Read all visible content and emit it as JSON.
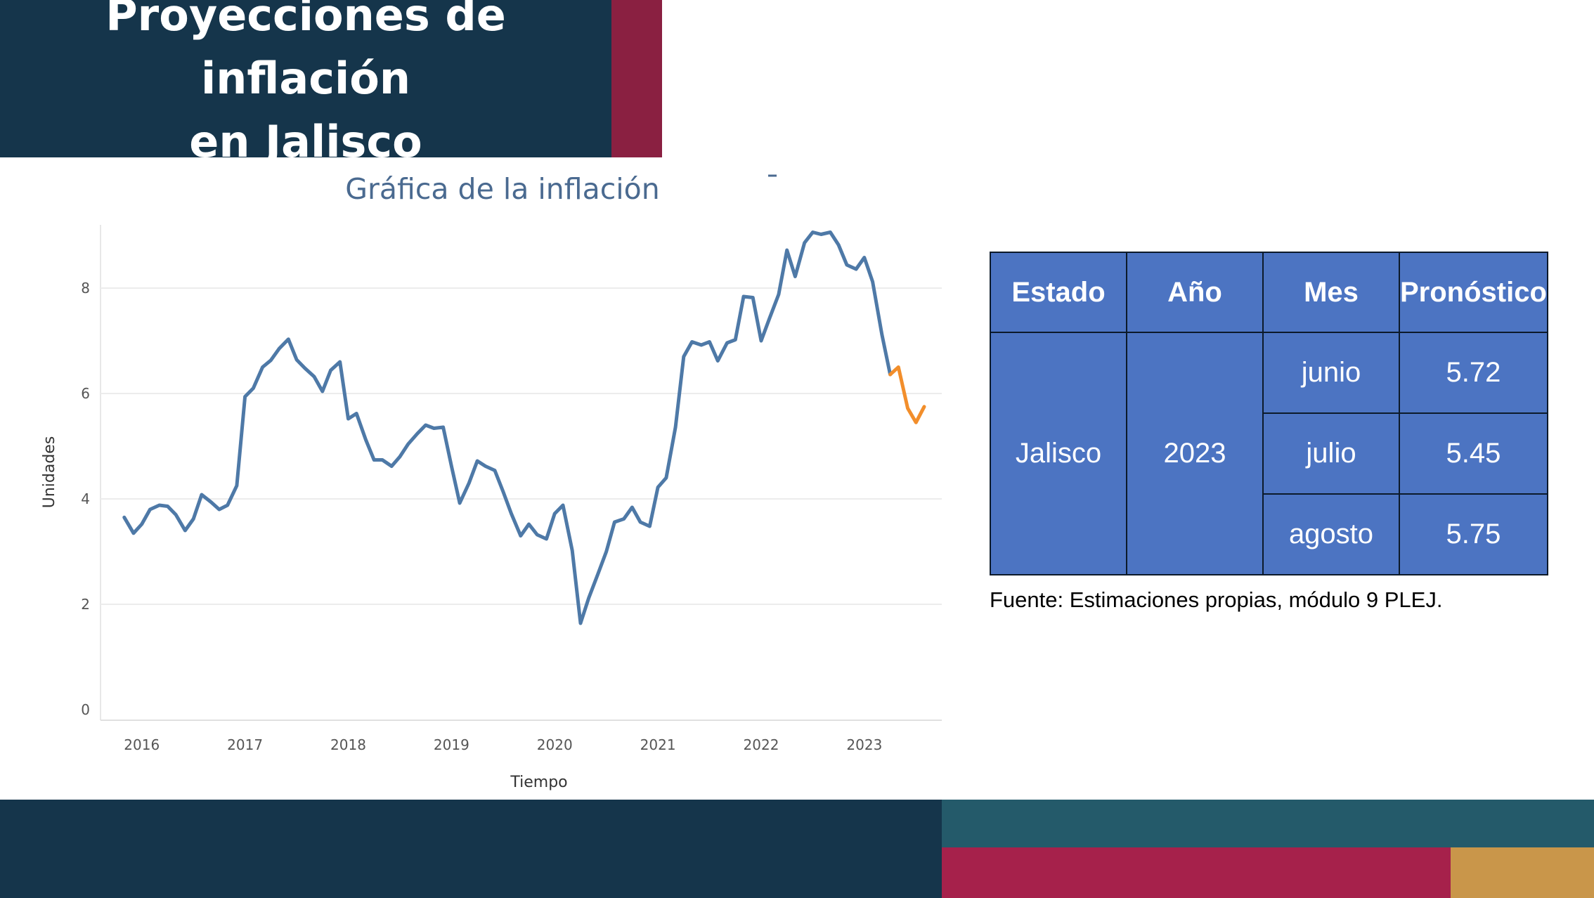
{
  "slide": {
    "title": "Proyecciones de inflación\nen Jalisco",
    "source": "Fuente: Estimaciones propias, módulo 9 PLEJ."
  },
  "colors": {
    "navy": "#15354b",
    "wine": "#8a2041",
    "teal": "#245a6a",
    "crimson": "#a6214b",
    "gold": "#c9964a",
    "series_historical": "#4e79a7",
    "series_forecast": "#f28e2b",
    "table_fill": "#4c74c2"
  },
  "chart_data": {
    "type": "line",
    "title": "Gráfica de la inflación",
    "xlabel": "Tiempo",
    "ylabel": "Unidades",
    "xlim": [
      2015.6,
      2023.75
    ],
    "ylim": [
      0,
      9.2
    ],
    "x_ticks": [
      "2016",
      "2017",
      "2018",
      "2019",
      "2020",
      "2021",
      "2022",
      "2023"
    ],
    "y_ticks": [
      "0",
      "2",
      "4",
      "6",
      "8"
    ],
    "grid": true,
    "legend": "none",
    "series": [
      {
        "key": "historical",
        "x": [
          2015.83,
          2015.92,
          2016.0,
          2016.08,
          2016.17,
          2016.25,
          2016.33,
          2016.42,
          2016.5,
          2016.58,
          2016.67,
          2016.75,
          2016.83,
          2016.92,
          2017.0,
          2017.08,
          2017.17,
          2017.25,
          2017.33,
          2017.42,
          2017.5,
          2017.58,
          2017.67,
          2017.75,
          2017.83,
          2017.92,
          2018.0,
          2018.08,
          2018.17,
          2018.25,
          2018.33,
          2018.42,
          2018.5,
          2018.58,
          2018.67,
          2018.75,
          2018.83,
          2018.92,
          2019.0,
          2019.08,
          2019.17,
          2019.25,
          2019.33,
          2019.42,
          2019.5,
          2019.58,
          2019.67,
          2019.75,
          2019.83,
          2019.92,
          2020.0,
          2020.08,
          2020.17,
          2020.25,
          2020.33,
          2020.42,
          2020.5,
          2020.58,
          2020.67,
          2020.75,
          2020.83,
          2020.92,
          2021.0,
          2021.08,
          2021.17,
          2021.25,
          2021.33,
          2021.42,
          2021.5,
          2021.58,
          2021.67,
          2021.75,
          2021.83,
          2021.92,
          2022.0,
          2022.08,
          2022.17,
          2022.25,
          2022.33,
          2022.42,
          2022.5,
          2022.58,
          2022.67,
          2022.75,
          2022.83,
          2022.92,
          2023.0,
          2023.08,
          2023.17,
          2023.25
        ],
        "values": [
          3.65,
          3.35,
          3.52,
          3.8,
          3.88,
          3.86,
          3.7,
          3.4,
          3.62,
          4.08,
          3.94,
          3.8,
          3.88,
          4.25,
          5.94,
          6.1,
          6.5,
          6.63,
          6.85,
          7.03,
          6.64,
          6.48,
          6.32,
          6.04,
          6.44,
          6.6,
          5.52,
          5.62,
          5.12,
          4.74,
          4.74,
          4.62,
          4.8,
          5.04,
          5.24,
          5.4,
          5.34,
          5.36,
          4.62,
          3.92,
          4.3,
          4.72,
          4.62,
          4.54,
          4.14,
          3.72,
          3.3,
          3.52,
          3.32,
          3.24,
          3.72,
          3.88,
          3.02,
          1.64,
          2.12,
          2.58,
          3.0,
          3.56,
          3.62,
          3.84,
          3.56,
          3.48,
          4.22,
          4.4,
          5.36,
          6.7,
          6.98,
          6.92,
          6.98,
          6.62,
          6.96,
          7.02,
          7.84,
          7.82,
          7.0,
          7.42,
          7.88,
          8.72,
          8.22,
          8.86,
          9.06,
          9.02,
          9.06,
          8.82,
          8.44,
          8.36,
          8.58,
          8.12,
          7.12,
          6.36
        ]
      },
      {
        "key": "forecast",
        "x": [
          2023.25,
          2023.33,
          2023.42,
          2023.5,
          2023.58
        ],
        "values": [
          6.36,
          6.5,
          5.72,
          5.45,
          5.75
        ]
      }
    ]
  },
  "table": {
    "headers": [
      "Estado",
      "Año",
      "Mes",
      "Pronóstico"
    ],
    "state": "Jalisco",
    "year": "2023",
    "months": [
      "junio",
      "julio",
      "agosto"
    ],
    "forecasts": [
      "5.72",
      "5.45",
      "5.75"
    ]
  }
}
